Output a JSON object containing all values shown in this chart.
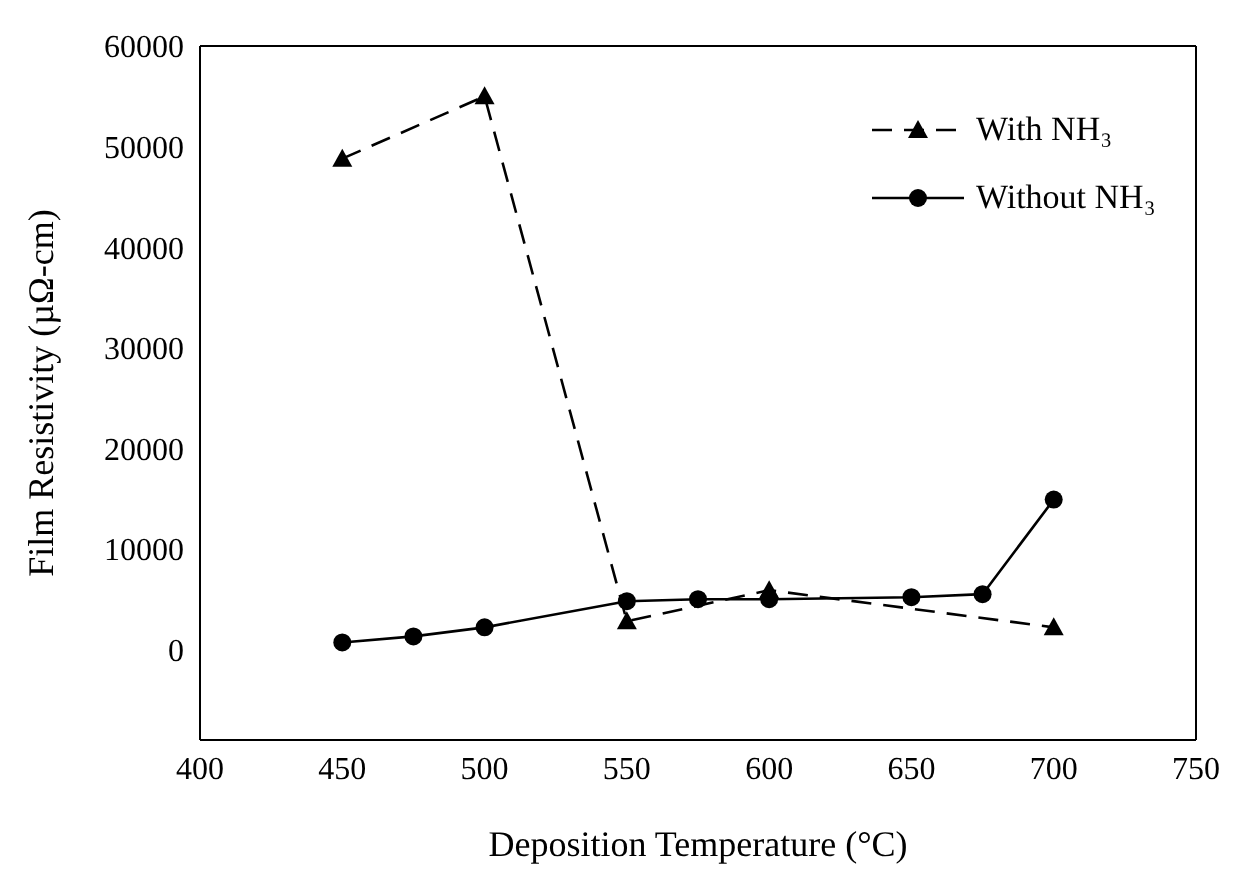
{
  "chart_data": {
    "type": "line",
    "xlabel": "Deposition Temperature (°C)",
    "ylabel": "Film Resistivity (µΩ-cm)",
    "x": [
      450,
      475,
      500,
      550,
      575,
      600,
      650,
      675,
      700
    ],
    "series": [
      {
        "name": "With NH₃",
        "color": "#000000",
        "marker": "triangle",
        "line_style": "dashed",
        "values": [
          48800,
          null,
          55000,
          2800,
          null,
          5900,
          null,
          null,
          2200
        ]
      },
      {
        "name": "Without NH₃",
        "color": "#000000",
        "marker": "circle",
        "line_style": "solid",
        "values": [
          700,
          1300,
          2200,
          4800,
          5000,
          5000,
          5200,
          5500,
          14900
        ]
      }
    ],
    "xlim": [
      400,
      750
    ],
    "xticks": [
      400,
      450,
      500,
      550,
      600,
      650,
      700,
      750
    ],
    "ylim": [
      -9000,
      60000
    ],
    "yticks": [
      0,
      10000,
      20000,
      30000,
      40000,
      50000,
      60000
    ],
    "grid": false,
    "legend": "top right"
  }
}
